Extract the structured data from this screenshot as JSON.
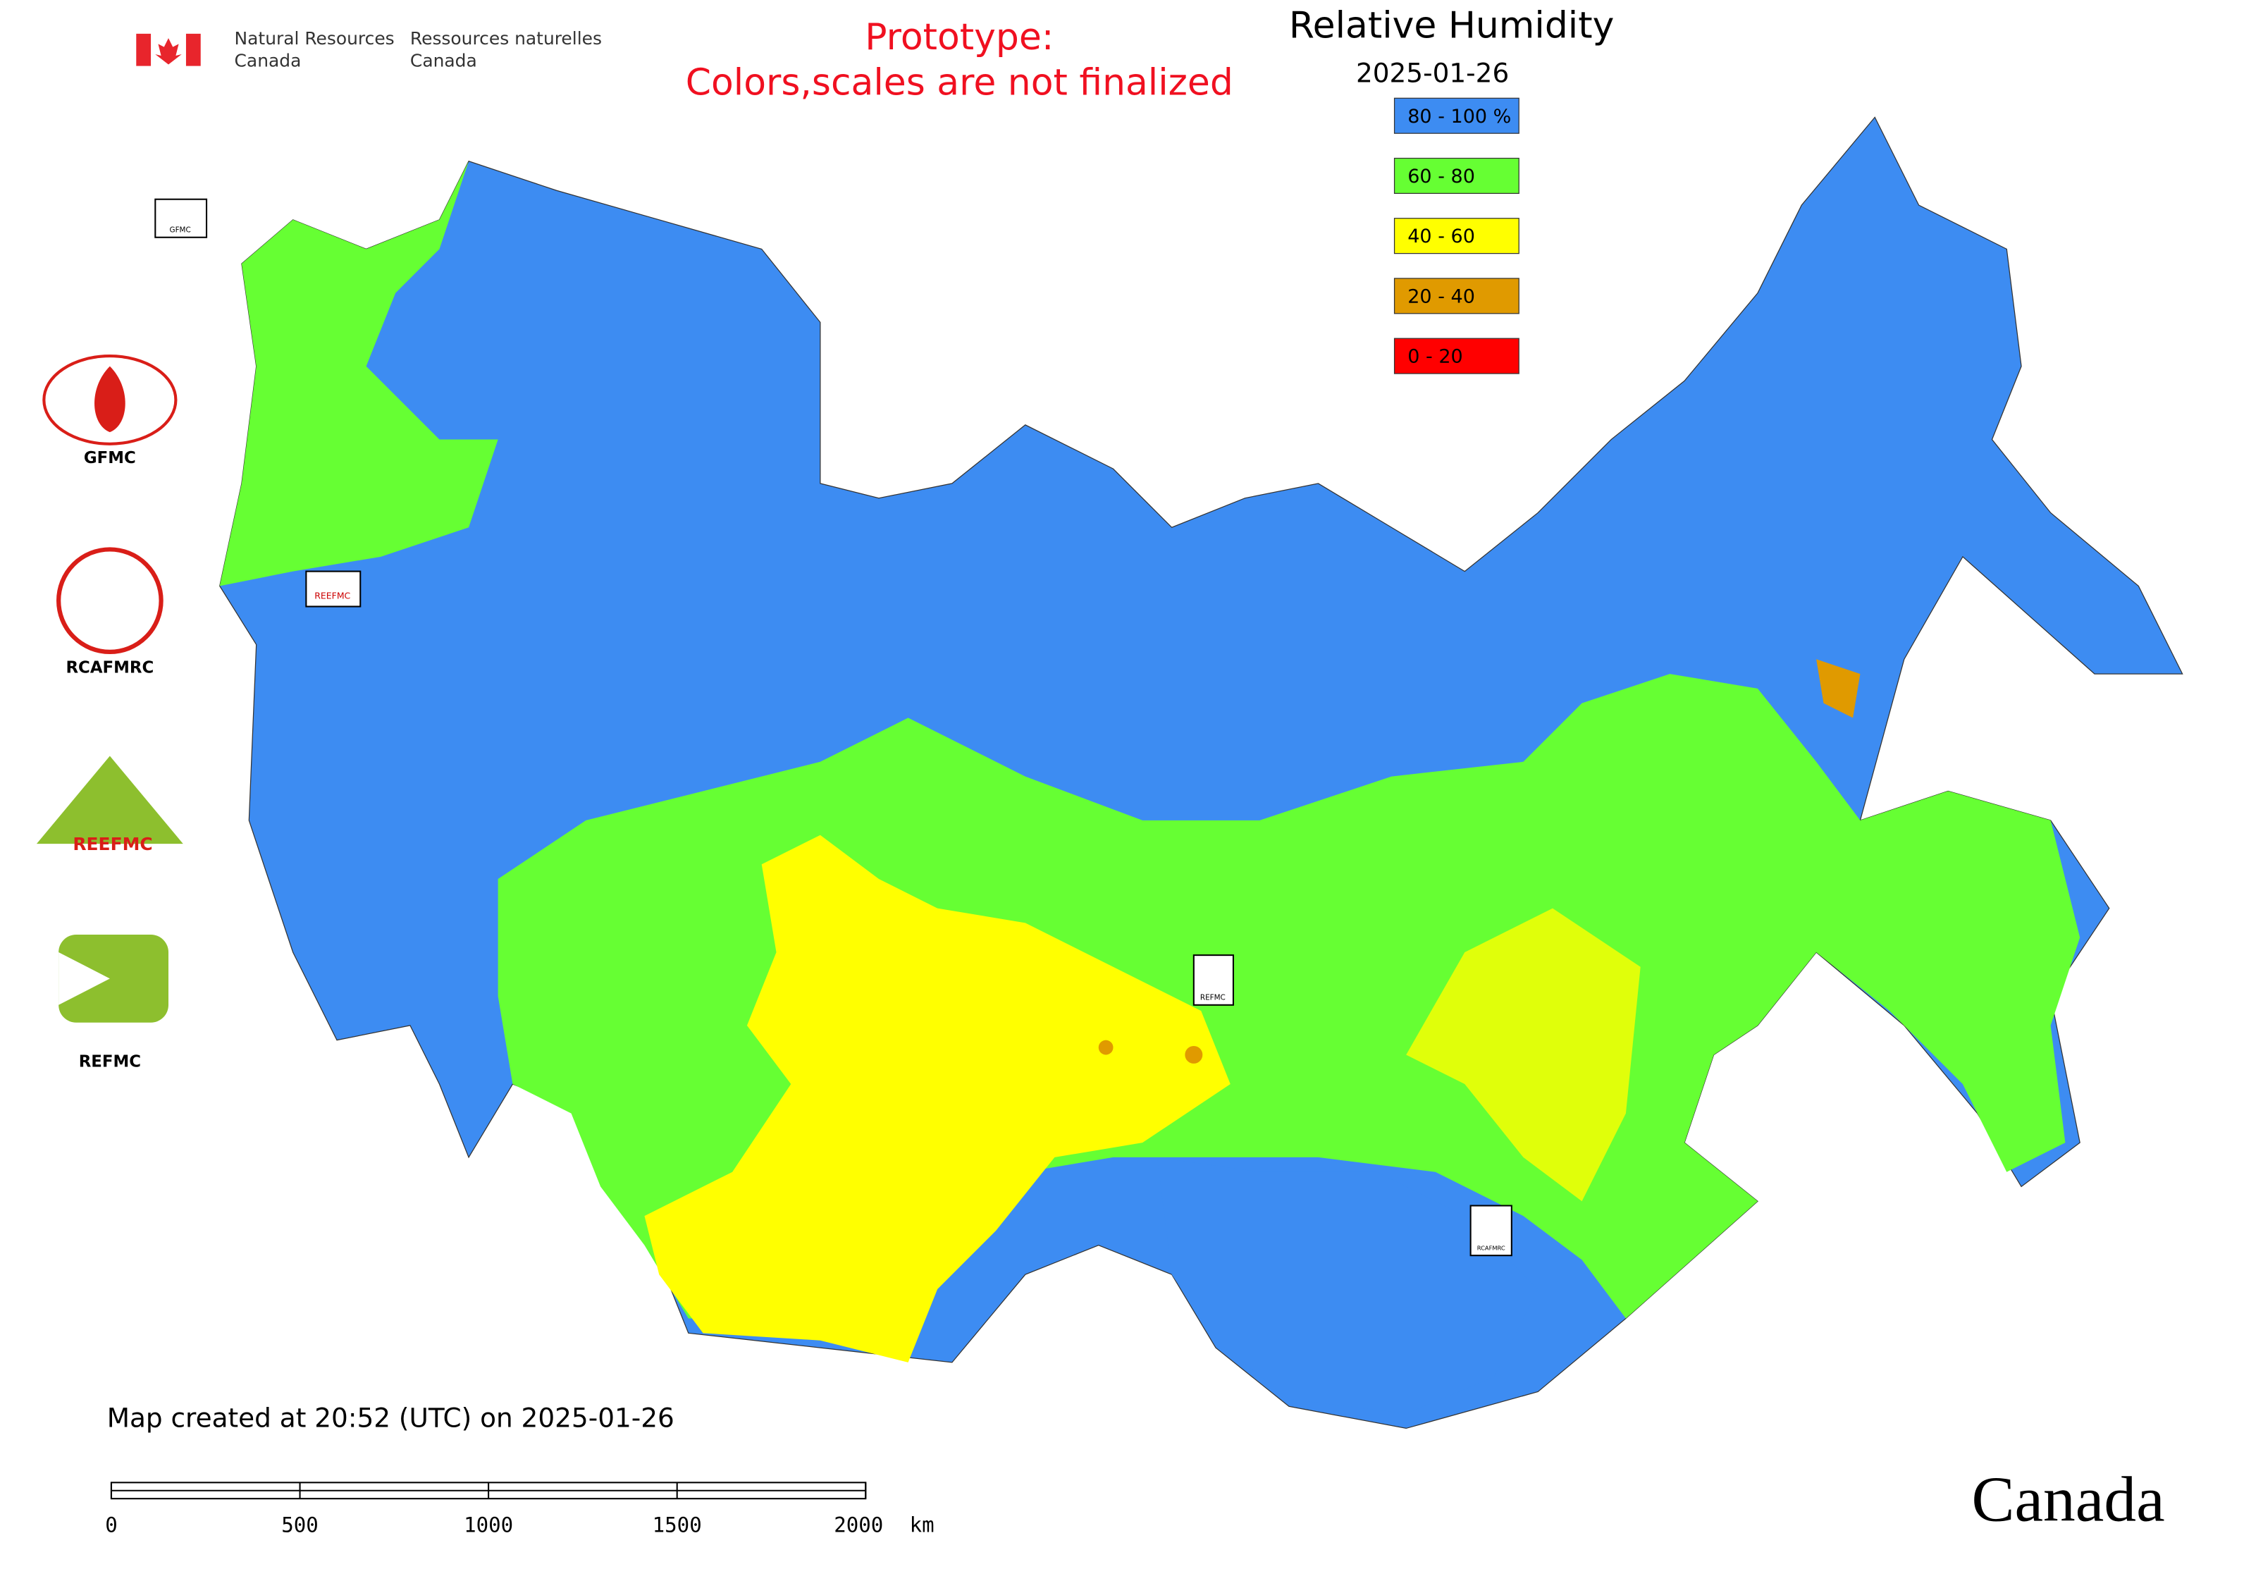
{
  "header": {
    "agency_en": [
      "Natural Resources",
      "Canada"
    ],
    "agency_fr": [
      "Ressources naturelles",
      "Canada"
    ]
  },
  "notice": [
    "Prototype:",
    "Colors,scales are not finalized"
  ],
  "legend": {
    "title": "Relative Humidity",
    "date": "2025-01-26",
    "items": [
      {
        "label": "80 - 100 %",
        "color": "#3d8cf2"
      },
      {
        "label": "60 - 80",
        "color": "#66ff33"
      },
      {
        "label": "40 - 60",
        "color": "#ffff00"
      },
      {
        "label": "20 - 40",
        "color": "#e09a00"
      },
      {
        "label": "0 - 20",
        "color": "#ff0000"
      }
    ]
  },
  "logos": [
    "GFMC",
    "RCAFMRC",
    "REEFMC",
    "REFMC"
  ],
  "map_markers": [
    "GFMC",
    "REEFMC",
    "REFMC",
    "RCAFMRC"
  ],
  "footer": {
    "created": "Map created at 20:52 (UTC) on 2025-01-26",
    "scale": {
      "ticks": [
        0,
        500,
        1000,
        1500,
        2000
      ],
      "unit": "km"
    },
    "wordmark": "Canada"
  }
}
